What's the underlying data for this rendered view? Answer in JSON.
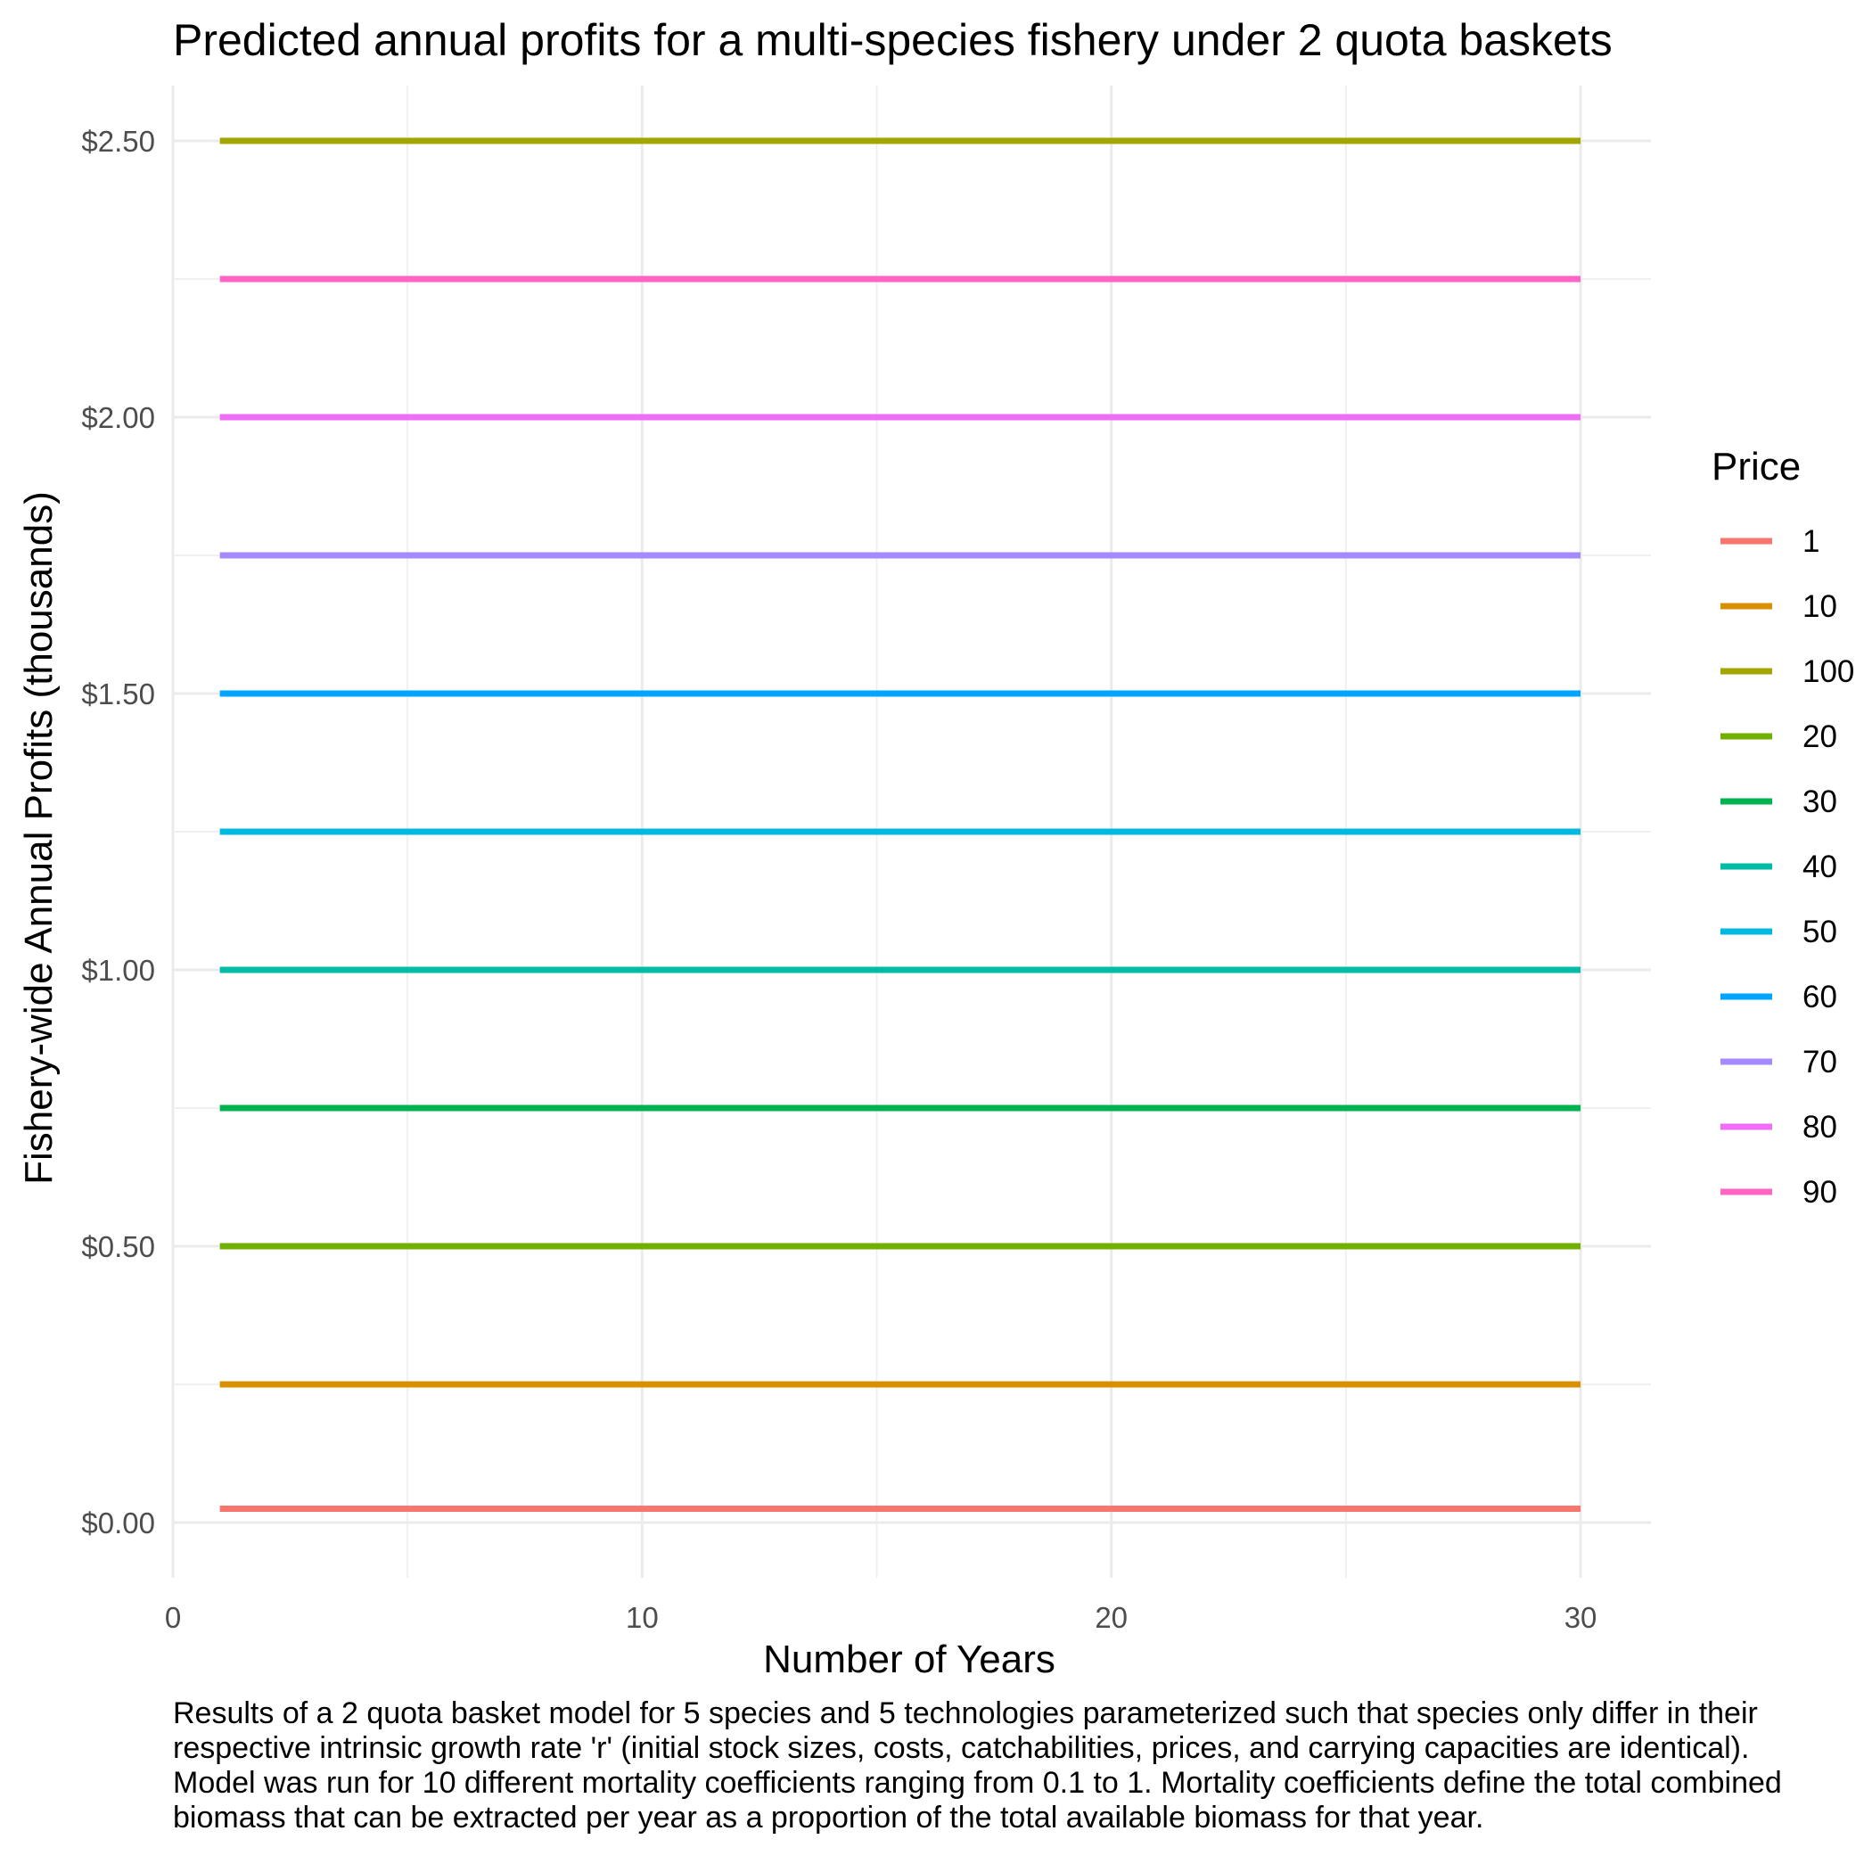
{
  "chart_data": {
    "type": "line",
    "title": "Predicted annual profits for a multi-species fishery under 2 quota baskets",
    "xlabel": "Number of Years",
    "ylabel": "Fishery-wide Annual Profits (thousands)",
    "xlim": [
      0,
      31.5
    ],
    "ylim": [
      -0.1,
      2.6
    ],
    "x_ticks": [
      0,
      10,
      20,
      30
    ],
    "x_tick_labels": [
      "0",
      "10",
      "20",
      "30"
    ],
    "y_ticks": [
      0,
      0.5,
      1.0,
      1.5,
      2.0,
      2.5
    ],
    "y_tick_labels": [
      "$0.00",
      "$0.50",
      "$1.00",
      "$1.50",
      "$2.00",
      "$2.50"
    ],
    "grid": true,
    "legend": {
      "title": "Price",
      "position": "right"
    },
    "x": [
      1,
      30
    ],
    "series": [
      {
        "name": "1",
        "color": "#F8766D",
        "values": [
          0.025,
          0.025
        ]
      },
      {
        "name": "10",
        "color": "#D89000",
        "values": [
          0.25,
          0.25
        ]
      },
      {
        "name": "100",
        "color": "#A3A500",
        "values": [
          2.5,
          2.5
        ]
      },
      {
        "name": "20",
        "color": "#72B000",
        "values": [
          0.5,
          0.5
        ]
      },
      {
        "name": "30",
        "color": "#00B34E",
        "values": [
          0.75,
          0.75
        ]
      },
      {
        "name": "40",
        "color": "#00BBA6",
        "values": [
          1.0,
          1.0
        ]
      },
      {
        "name": "50",
        "color": "#00B8E0",
        "values": [
          1.25,
          1.25
        ]
      },
      {
        "name": "60",
        "color": "#00A5FF",
        "values": [
          1.5,
          1.5
        ]
      },
      {
        "name": "70",
        "color": "#A58AFF",
        "values": [
          1.75,
          1.75
        ]
      },
      {
        "name": "80",
        "color": "#EE6EF5",
        "values": [
          2.0,
          2.0
        ]
      },
      {
        "name": "90",
        "color": "#FF66C4",
        "values": [
          2.25,
          2.25
        ]
      }
    ],
    "caption": "Results of a 2 quota basket model for 5 species and 5 technologies parameterized such that species only differ in their respective intrinsic growth rate 'r' (initial stock sizes, costs, catchabilities, prices, and carrying capacities are identical). Model was run for 10 different mortality coefficients ranging from 0.1 to 1. Mortality coefficients define the total combined biomass that can be extracted per year as a proportion of the total available biomass for that year."
  }
}
